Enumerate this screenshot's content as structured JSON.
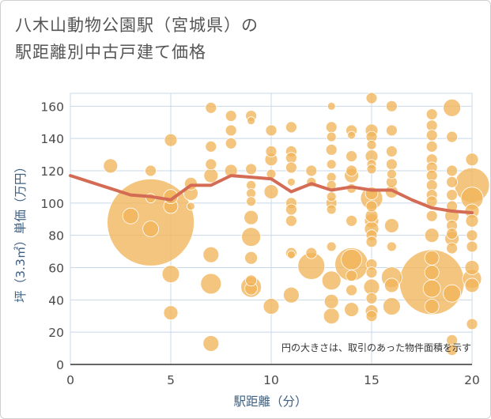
{
  "title_lines": [
    "八木山動物公園駅（宮城県）の",
    "駅距離別中古戸建て価格"
  ],
  "colors": {
    "bubble": "#f1b55a",
    "bubble_stroke": "#ffffff",
    "line": "#d46b55",
    "grid": "#c8d8e8",
    "axis_text": "#3d5f80"
  },
  "chart_data": {
    "type": "scatter",
    "title": "八木山動物公園駅（宮城県）の駅距離別中古戸建て価格",
    "xlabel": "駅距離（分）",
    "ylabel": "坪（3.3㎡）単価（万円）",
    "xlim": [
      0,
      20
    ],
    "ylim": [
      0,
      168
    ],
    "xticks": [
      0,
      5,
      10,
      15,
      20
    ],
    "yticks": [
      0,
      20,
      40,
      60,
      80,
      100,
      120,
      140,
      160
    ],
    "grid": true,
    "annotation": "円の大きさは、取引のあった物件面積を示す",
    "bubbles": [
      {
        "x": 2,
        "y": 123,
        "s": 9
      },
      {
        "x": 3,
        "y": 92,
        "s": 10
      },
      {
        "x": 4,
        "y": 120,
        "s": 7
      },
      {
        "x": 4,
        "y": 88,
        "s": 55
      },
      {
        "x": 4,
        "y": 84,
        "s": 10
      },
      {
        "x": 4,
        "y": 103,
        "s": 6
      },
      {
        "x": 5,
        "y": 139,
        "s": 8
      },
      {
        "x": 5,
        "y": 98,
        "s": 9
      },
      {
        "x": 5,
        "y": 104,
        "s": 9
      },
      {
        "x": 5,
        "y": 56,
        "s": 11
      },
      {
        "x": 5,
        "y": 32,
        "s": 9
      },
      {
        "x": 6,
        "y": 106,
        "s": 9
      },
      {
        "x": 6,
        "y": 112,
        "s": 8
      },
      {
        "x": 6,
        "y": 98,
        "s": 5
      },
      {
        "x": 7,
        "y": 159,
        "s": 7
      },
      {
        "x": 7,
        "y": 135,
        "s": 7
      },
      {
        "x": 7,
        "y": 124,
        "s": 7
      },
      {
        "x": 7,
        "y": 117,
        "s": 9
      },
      {
        "x": 7,
        "y": 68,
        "s": 10
      },
      {
        "x": 7,
        "y": 50,
        "s": 13
      },
      {
        "x": 7,
        "y": 13,
        "s": 10
      },
      {
        "x": 8,
        "y": 154,
        "s": 7
      },
      {
        "x": 8,
        "y": 145,
        "s": 7
      },
      {
        "x": 8,
        "y": 137,
        "s": 7
      },
      {
        "x": 8,
        "y": 120,
        "s": 8
      },
      {
        "x": 9,
        "y": 154,
        "s": 7
      },
      {
        "x": 9,
        "y": 151,
        "s": 5
      },
      {
        "x": 9,
        "y": 121,
        "s": 7
      },
      {
        "x": 9,
        "y": 111,
        "s": 6
      },
      {
        "x": 9,
        "y": 106,
        "s": 6
      },
      {
        "x": 9,
        "y": 101,
        "s": 6
      },
      {
        "x": 9,
        "y": 91,
        "s": 9
      },
      {
        "x": 9,
        "y": 79,
        "s": 12
      },
      {
        "x": 9,
        "y": 66,
        "s": 8
      },
      {
        "x": 9,
        "y": 52,
        "s": 7
      },
      {
        "x": 9,
        "y": 48,
        "s": 13
      },
      {
        "x": 9,
        "y": 47,
        "s": 8
      },
      {
        "x": 10,
        "y": 145,
        "s": 7
      },
      {
        "x": 10,
        "y": 132,
        "s": 7
      },
      {
        "x": 10,
        "y": 127,
        "s": 8
      },
      {
        "x": 10,
        "y": 118,
        "s": 6
      },
      {
        "x": 10,
        "y": 107,
        "s": 9
      },
      {
        "x": 10,
        "y": 36,
        "s": 10
      },
      {
        "x": 11,
        "y": 147,
        "s": 7
      },
      {
        "x": 11,
        "y": 132,
        "s": 7
      },
      {
        "x": 11,
        "y": 128,
        "s": 7
      },
      {
        "x": 11,
        "y": 122,
        "s": 7
      },
      {
        "x": 11,
        "y": 113,
        "s": 5
      },
      {
        "x": 11,
        "y": 100,
        "s": 7
      },
      {
        "x": 11,
        "y": 96,
        "s": 7
      },
      {
        "x": 11,
        "y": 89,
        "s": 7
      },
      {
        "x": 11,
        "y": 69,
        "s": 7
      },
      {
        "x": 11,
        "y": 68,
        "s": 5
      },
      {
        "x": 11,
        "y": 43,
        "s": 10
      },
      {
        "x": 12,
        "y": 120,
        "s": 7
      },
      {
        "x": 12,
        "y": 113,
        "s": 6
      },
      {
        "x": 12,
        "y": 69,
        "s": 7
      },
      {
        "x": 12,
        "y": 61,
        "s": 17
      },
      {
        "x": 13,
        "y": 160,
        "s": 5
      },
      {
        "x": 13,
        "y": 147,
        "s": 7
      },
      {
        "x": 13,
        "y": 141,
        "s": 6
      },
      {
        "x": 13,
        "y": 133,
        "s": 7
      },
      {
        "x": 13,
        "y": 124,
        "s": 6
      },
      {
        "x": 13,
        "y": 116,
        "s": 6
      },
      {
        "x": 13,
        "y": 111,
        "s": 6
      },
      {
        "x": 13,
        "y": 104,
        "s": 6
      },
      {
        "x": 13,
        "y": 100,
        "s": 7
      },
      {
        "x": 13,
        "y": 96,
        "s": 6
      },
      {
        "x": 13,
        "y": 73,
        "s": 6
      },
      {
        "x": 13,
        "y": 52,
        "s": 12
      },
      {
        "x": 13,
        "y": 39,
        "s": 9
      },
      {
        "x": 13,
        "y": 30,
        "s": 10
      },
      {
        "x": 14,
        "y": 145,
        "s": 7
      },
      {
        "x": 14,
        "y": 142,
        "s": 5
      },
      {
        "x": 14,
        "y": 129,
        "s": 7
      },
      {
        "x": 14,
        "y": 120,
        "s": 7
      },
      {
        "x": 14,
        "y": 117,
        "s": 9
      },
      {
        "x": 14,
        "y": 109,
        "s": 6
      },
      {
        "x": 14,
        "y": 89,
        "s": 7
      },
      {
        "x": 14,
        "y": 65,
        "s": 13
      },
      {
        "x": 14,
        "y": 62,
        "s": 21
      },
      {
        "x": 14,
        "y": 55,
        "s": 7
      },
      {
        "x": 14,
        "y": 46,
        "s": 7
      },
      {
        "x": 14,
        "y": 34,
        "s": 9
      },
      {
        "x": 15,
        "y": 165,
        "s": 7
      },
      {
        "x": 15,
        "y": 145,
        "s": 8
      },
      {
        "x": 15,
        "y": 141,
        "s": 7
      },
      {
        "x": 15,
        "y": 136,
        "s": 6
      },
      {
        "x": 15,
        "y": 129,
        "s": 8
      },
      {
        "x": 15,
        "y": 124,
        "s": 6
      },
      {
        "x": 15,
        "y": 121,
        "s": 6
      },
      {
        "x": 15,
        "y": 106,
        "s": 8
      },
      {
        "x": 15,
        "y": 103,
        "s": 14
      },
      {
        "x": 15,
        "y": 98,
        "s": 7
      },
      {
        "x": 15,
        "y": 92,
        "s": 8
      },
      {
        "x": 15,
        "y": 89,
        "s": 9
      },
      {
        "x": 15,
        "y": 84,
        "s": 9
      },
      {
        "x": 15,
        "y": 80,
        "s": 7
      },
      {
        "x": 15,
        "y": 76,
        "s": 7
      },
      {
        "x": 15,
        "y": 62,
        "s": 7
      },
      {
        "x": 15,
        "y": 57,
        "s": 7
      },
      {
        "x": 15,
        "y": 48,
        "s": 10
      },
      {
        "x": 15,
        "y": 41,
        "s": 7
      },
      {
        "x": 15,
        "y": 33,
        "s": 8
      },
      {
        "x": 15,
        "y": 30,
        "s": 7
      },
      {
        "x": 16,
        "y": 160,
        "s": 7
      },
      {
        "x": 16,
        "y": 145,
        "s": 7
      },
      {
        "x": 16,
        "y": 132,
        "s": 7
      },
      {
        "x": 16,
        "y": 124,
        "s": 7
      },
      {
        "x": 16,
        "y": 118,
        "s": 6
      },
      {
        "x": 16,
        "y": 113,
        "s": 7
      },
      {
        "x": 16,
        "y": 107,
        "s": 8
      },
      {
        "x": 16,
        "y": 86,
        "s": 9
      },
      {
        "x": 16,
        "y": 73,
        "s": 6
      },
      {
        "x": 16,
        "y": 54,
        "s": 13
      },
      {
        "x": 16,
        "y": 49,
        "s": 9
      },
      {
        "x": 16,
        "y": 36,
        "s": 11
      },
      {
        "x": 18,
        "y": 155,
        "s": 7
      },
      {
        "x": 18,
        "y": 148,
        "s": 7
      },
      {
        "x": 18,
        "y": 142,
        "s": 7
      },
      {
        "x": 18,
        "y": 135,
        "s": 7
      },
      {
        "x": 18,
        "y": 127,
        "s": 7
      },
      {
        "x": 18,
        "y": 122,
        "s": 7
      },
      {
        "x": 18,
        "y": 117,
        "s": 7
      },
      {
        "x": 18,
        "y": 111,
        "s": 7
      },
      {
        "x": 18,
        "y": 105,
        "s": 7
      },
      {
        "x": 18,
        "y": 101,
        "s": 7
      },
      {
        "x": 18,
        "y": 92,
        "s": 7
      },
      {
        "x": 18,
        "y": 80,
        "s": 9
      },
      {
        "x": 18,
        "y": 66,
        "s": 9
      },
      {
        "x": 18,
        "y": 57,
        "s": 9
      },
      {
        "x": 18,
        "y": 51,
        "s": 41
      },
      {
        "x": 18,
        "y": 47,
        "s": 11
      },
      {
        "x": 18,
        "y": 36,
        "s": 9
      },
      {
        "x": 19,
        "y": 159,
        "s": 11
      },
      {
        "x": 19,
        "y": 141,
        "s": 7
      },
      {
        "x": 19,
        "y": 120,
        "s": 7
      },
      {
        "x": 19,
        "y": 113,
        "s": 7
      },
      {
        "x": 19,
        "y": 105,
        "s": 7
      },
      {
        "x": 19,
        "y": 98,
        "s": 7
      },
      {
        "x": 19,
        "y": 92,
        "s": 9
      },
      {
        "x": 19,
        "y": 86,
        "s": 7
      },
      {
        "x": 19,
        "y": 81,
        "s": 7
      },
      {
        "x": 19,
        "y": 78,
        "s": 9
      },
      {
        "x": 19,
        "y": 72,
        "s": 7
      },
      {
        "x": 19,
        "y": 44,
        "s": 11
      },
      {
        "x": 19,
        "y": 15,
        "s": 7
      },
      {
        "x": 19,
        "y": 9,
        "s": 7
      },
      {
        "x": 20,
        "y": 127,
        "s": 8
      },
      {
        "x": 20,
        "y": 111,
        "s": 22
      },
      {
        "x": 20,
        "y": 103,
        "s": 14
      },
      {
        "x": 20,
        "y": 95,
        "s": 9
      },
      {
        "x": 20,
        "y": 89,
        "s": 8
      },
      {
        "x": 20,
        "y": 80,
        "s": 7
      },
      {
        "x": 20,
        "y": 73,
        "s": 7
      },
      {
        "x": 20,
        "y": 60,
        "s": 9
      },
      {
        "x": 20,
        "y": 53,
        "s": 12
      },
      {
        "x": 20,
        "y": 49,
        "s": 9
      },
      {
        "x": 20,
        "y": 25,
        "s": 7
      }
    ],
    "trend_line": {
      "x": [
        0,
        1,
        2,
        3,
        4,
        5,
        6,
        7,
        8,
        9,
        10,
        11,
        12,
        13,
        14,
        15,
        16,
        17,
        18,
        19,
        20
      ],
      "y": [
        117,
        113,
        109,
        105,
        104,
        102,
        111,
        111,
        117,
        116,
        115,
        107,
        112,
        108,
        110,
        108,
        108,
        102,
        97,
        95,
        94
      ]
    }
  }
}
